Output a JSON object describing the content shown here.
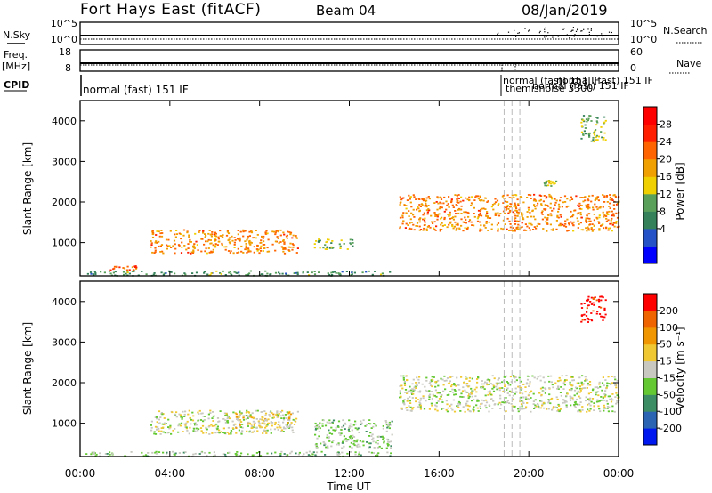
{
  "header": {
    "title": "Fort Hays East (fitACF)",
    "beam": "Beam 04",
    "date": "08/Jan/2019"
  },
  "noise_panel": {
    "left_label": "N.Sky",
    "right_label": "N.Search",
    "left_ticks": [
      "10^5",
      "10^0"
    ],
    "right_ticks": [
      "10^5",
      "10^0"
    ]
  },
  "freq_panel": {
    "left_label_line1": "Freq.",
    "left_label_line2": "[MHz]",
    "right_label": "Nave",
    "left_ticks": [
      "18",
      "8"
    ],
    "right_ticks": [
      "60",
      "0"
    ]
  },
  "cpid_panel": {
    "label": "CPID",
    "main_mode": "normal (fast) 151 IF",
    "overlap_modes": [
      "normal (fast) 151 IF",
      "themisnoise 3300",
      "normal (fast) 151 IF",
      "normal (fast) 151 IF"
    ]
  },
  "power_panel": {
    "ylabel": "Slant Range [km]",
    "yticks": [
      "4000",
      "3000",
      "2000",
      "1000"
    ],
    "colorbar_label": "Power [dB]",
    "colorbar_ticks": [
      "28",
      "24",
      "20",
      "16",
      "12",
      "8",
      "4"
    ],
    "colors": [
      "#0000ff",
      "#2552c6",
      "#35825a",
      "#5aa05a",
      "#f0d000",
      "#f0a000",
      "#ff6400",
      "#ff1e00",
      "#ff0000"
    ]
  },
  "velocity_panel": {
    "ylabel": "Slant Range [km]",
    "yticks": [
      "4000",
      "3000",
      "2000",
      "1000"
    ],
    "colorbar_label": "Velocity [m s⁻¹]",
    "colorbar_ticks": [
      "200",
      "100",
      "50",
      "15",
      "-15",
      "-50",
      "-100",
      "-200"
    ],
    "colors": [
      "#0018f0",
      "#2c64b4",
      "#3c8c64",
      "#64c832",
      "#c8c8c0",
      "#f0c832",
      "#f09600",
      "#f06400",
      "#ff0000"
    ]
  },
  "x_axis": {
    "ticks": [
      "00:00",
      "04:00",
      "08:00",
      "12:00",
      "16:00",
      "20:00",
      "00:00"
    ],
    "label": "Time UT"
  },
  "chart_data": [
    {
      "type": "heatmap",
      "title": "Power",
      "xlabel": "Time UT",
      "ylabel": "Slant Range [km]",
      "xlim": [
        0,
        24
      ],
      "ylim": [
        180,
        4500
      ],
      "colorbar": "Power [dB]",
      "clim": [
        0,
        30
      ],
      "regions": [
        {
          "t0": 0.2,
          "t1": 14.0,
          "r0": 200,
          "r1": 320,
          "value": 10
        },
        {
          "t0": 1.3,
          "t1": 2.6,
          "r0": 330,
          "r1": 450,
          "value": 22
        },
        {
          "t0": 3.1,
          "t1": 9.7,
          "r0": 750,
          "r1": 1330,
          "value": 20
        },
        {
          "t0": 10.4,
          "t1": 12.2,
          "r0": 850,
          "r1": 1100,
          "value": 12
        },
        {
          "t0": 14.2,
          "t1": 24.0,
          "r0": 1300,
          "r1": 2200,
          "value": 20
        },
        {
          "t0": 20.6,
          "t1": 21.2,
          "r0": 2400,
          "r1": 2550,
          "value": 14
        },
        {
          "t0": 22.3,
          "t1": 23.4,
          "r0": 3500,
          "r1": 4150,
          "value": 12
        }
      ]
    },
    {
      "type": "heatmap",
      "title": "Velocity",
      "xlabel": "Time UT",
      "ylabel": "Slant Range [km]",
      "xlim": [
        0,
        24
      ],
      "ylim": [
        180,
        4500
      ],
      "colorbar": "Velocity [m s⁻¹]",
      "clim": [
        -200,
        200
      ],
      "regions": [
        {
          "t0": 0.2,
          "t1": 14.0,
          "r0": 200,
          "r1": 320,
          "value": -30
        },
        {
          "t0": 3.1,
          "t1": 9.7,
          "r0": 750,
          "r1": 1330,
          "value": 0
        },
        {
          "t0": 6.8,
          "t1": 9.4,
          "r0": 900,
          "r1": 1300,
          "value": 40
        },
        {
          "t0": 10.4,
          "t1": 13.9,
          "r0": 400,
          "r1": 1100,
          "value": -30
        },
        {
          "t0": 14.2,
          "t1": 24.0,
          "r0": 1300,
          "r1": 2200,
          "value": 0
        },
        {
          "t0": 22.3,
          "t1": 23.4,
          "r0": 3500,
          "r1": 4150,
          "value": 200
        }
      ]
    }
  ]
}
